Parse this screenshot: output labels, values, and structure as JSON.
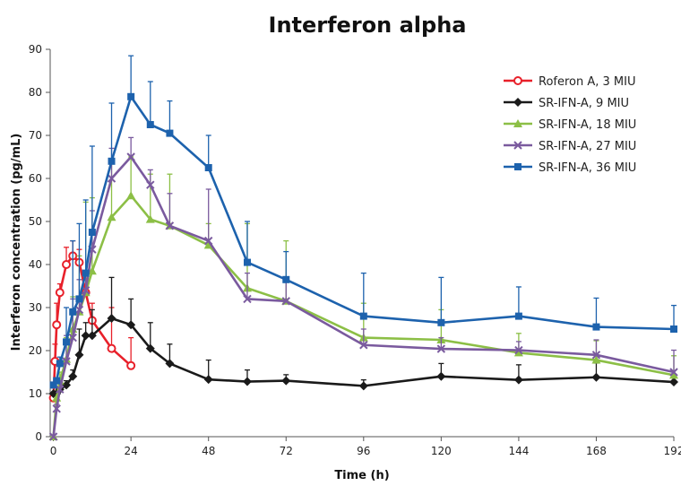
{
  "chart_data": {
    "type": "line",
    "title": "Interferon alpha",
    "xlabel": "Time (h)",
    "ylabel": "Interferon concentration (pg/mL)",
    "xlim": [
      -1,
      192
    ],
    "ylim": [
      0,
      90
    ],
    "x_ticks": [
      0,
      24,
      48,
      72,
      96,
      120,
      144,
      168,
      192
    ],
    "y_ticks": [
      0,
      10,
      20,
      30,
      40,
      50,
      60,
      70,
      80,
      90
    ],
    "grid": false,
    "legend_position": "top-right",
    "series": [
      {
        "name": "Roferon A, 3 MIU",
        "color": "#e8202a",
        "marker": "circle-open",
        "x": [
          0,
          0.5,
          1,
          2,
          4,
          6,
          8,
          10,
          12,
          18,
          24
        ],
        "y": [
          9,
          17.5,
          26,
          33.5,
          40,
          42,
          40.5,
          33.5,
          27,
          20.5,
          16.5
        ],
        "error": [
          0,
          4,
          5,
          2,
          4,
          3.5,
          3,
          5,
          4,
          9.5,
          6.5
        ]
      },
      {
        "name": "SR-IFN-A, 9 MIU",
        "color": "#1a1a1a",
        "marker": "diamond",
        "x": [
          0,
          1,
          2,
          4,
          6,
          8,
          10,
          12,
          18,
          24,
          30,
          36,
          48,
          60,
          72,
          96,
          120,
          144,
          168,
          192
        ],
        "y": [
          10,
          10,
          11,
          12,
          14,
          19,
          23.5,
          23.5,
          27.5,
          26,
          20.5,
          17,
          13.3,
          12.8,
          13,
          11.8,
          14,
          13.2,
          13.8,
          12.7
        ],
        "error": [
          0,
          0,
          0.5,
          1,
          1.5,
          6,
          3,
          6,
          9.5,
          6,
          6,
          4.5,
          4.5,
          2.7,
          1.4,
          1.4,
          3,
          3.5,
          3.3,
          1.7
        ]
      },
      {
        "name": "SR-IFN-A, 18 MIU",
        "color": "#8cbf46",
        "marker": "triangle",
        "x": [
          0,
          1,
          2,
          4,
          6,
          8,
          10,
          12,
          18,
          24,
          30,
          36,
          48,
          60,
          72,
          96,
          120,
          144,
          168,
          192
        ],
        "y": [
          0,
          9,
          13,
          18,
          25,
          29,
          33.5,
          38.5,
          51,
          56,
          50.5,
          49,
          44.5,
          34.5,
          31.5,
          23,
          22.5,
          19.5,
          17.8,
          14.3
        ],
        "error": [
          0,
          0,
          2,
          5,
          7.5,
          13,
          21,
          17,
          13,
          9,
          10.5,
          12,
          5,
          15,
          14,
          8,
          7,
          4.5,
          4.5,
          4.5
        ]
      },
      {
        "name": "SR-IFN-A, 27 MIU",
        "color": "#7a5a9e",
        "marker": "x",
        "x": [
          0,
          1,
          2,
          4,
          6,
          8,
          10,
          12,
          18,
          24,
          30,
          36,
          48,
          60,
          72,
          96,
          120,
          144,
          168,
          192
        ],
        "y": [
          0,
          6.5,
          11,
          17.5,
          23,
          29.5,
          34,
          43.5,
          60,
          65,
          58.5,
          49,
          45.5,
          32,
          31.5,
          21.3,
          20.4,
          20.1,
          19,
          15
        ],
        "error": [
          0,
          1,
          2,
          6,
          9,
          7,
          4,
          9,
          7,
          4.5,
          3.5,
          7.5,
          12,
          6,
          5,
          3.7,
          2.6,
          2,
          3.5,
          5.1
        ]
      },
      {
        "name": "SR-IFN-A, 36 MIU",
        "color": "#1d62ad",
        "marker": "square",
        "x": [
          0,
          1,
          2,
          4,
          6,
          8,
          10,
          12,
          18,
          24,
          30,
          36,
          48,
          60,
          72,
          96,
          120,
          144,
          168,
          192
        ],
        "y": [
          12,
          13,
          17,
          22,
          29,
          32,
          38,
          47.5,
          64,
          79,
          72.5,
          70.5,
          62.5,
          40.5,
          36.5,
          28,
          26.5,
          28,
          25.5,
          25
        ],
        "error": [
          0,
          0.5,
          1.5,
          8,
          16.5,
          17.5,
          17,
          20,
          13.5,
          9.5,
          10,
          7.5,
          7.5,
          9.5,
          6.5,
          10,
          10.5,
          6.8,
          6.7,
          5.5
        ]
      }
    ]
  }
}
